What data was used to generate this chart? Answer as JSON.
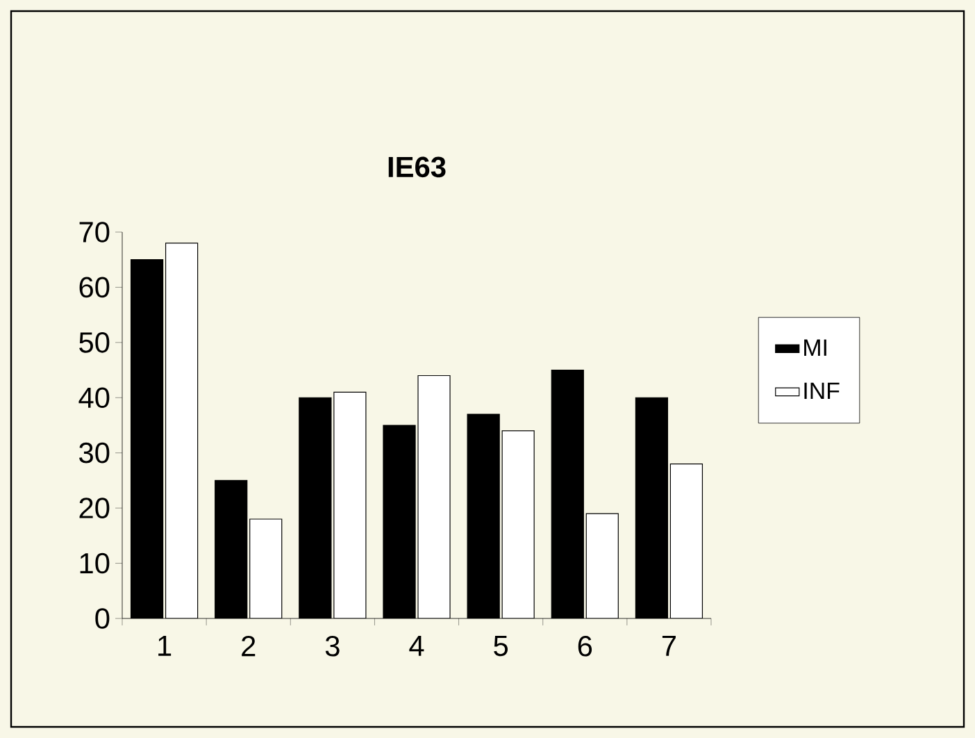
{
  "chart_data": {
    "type": "bar",
    "title": "IE63",
    "categories": [
      "1",
      "2",
      "3",
      "4",
      "5",
      "6",
      "7"
    ],
    "series": [
      {
        "name": "MI",
        "color": "#000000",
        "values": [
          65,
          25,
          40,
          35,
          37,
          45,
          40
        ]
      },
      {
        "name": "INF",
        "color": "#ffffff",
        "values": [
          68,
          18,
          41,
          44,
          34,
          19,
          28
        ]
      }
    ],
    "ylim": [
      0,
      70
    ],
    "yticks": [
      0,
      10,
      20,
      30,
      40,
      50,
      60,
      70
    ],
    "grid": false,
    "legend": "right"
  }
}
